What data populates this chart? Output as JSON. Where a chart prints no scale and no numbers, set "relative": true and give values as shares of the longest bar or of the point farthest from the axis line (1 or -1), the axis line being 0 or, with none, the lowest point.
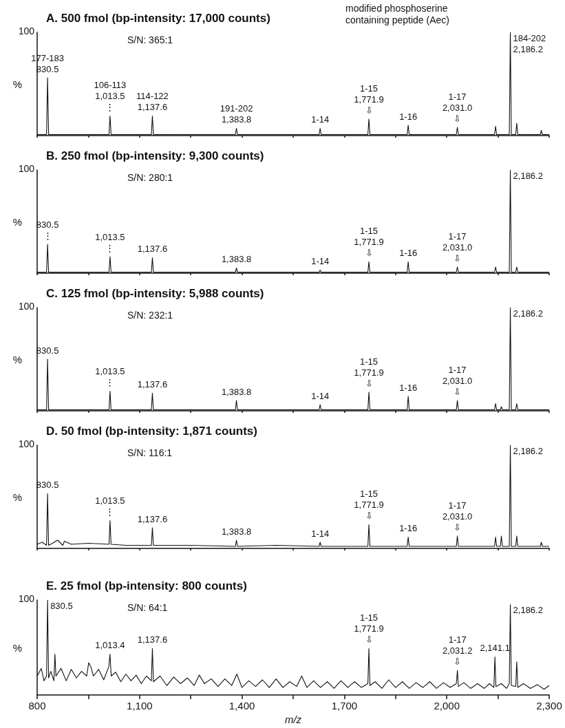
{
  "chart_data": [
    {
      "type": "line",
      "title": "A. 500 fmol (bp-intensity: 17,000 counts)",
      "ylabel": "%",
      "relative": true,
      "marker": "none",
      "tick_labels": false,
      "xlim": [
        800,
        2300
      ],
      "xticks": [
        {
          "value": 800,
          "label": null
        },
        {
          "value": 950,
          "label": null
        },
        {
          "value": 1100,
          "label": null
        },
        {
          "value": 1250,
          "label": null
        },
        {
          "value": 1400,
          "label": null
        },
        {
          "value": 1550,
          "label": null
        },
        {
          "value": 1700,
          "label": null
        },
        {
          "value": 1850,
          "label": null
        },
        {
          "value": 2000,
          "label": null
        },
        {
          "value": 2150,
          "label": null
        },
        {
          "value": 2300,
          "label": null
        }
      ],
      "x": [
        800,
        827.5,
        830.5,
        833.5,
        1010.5,
        1013.5,
        1016.5,
        1134.6,
        1137.6,
        1140.6,
        1380.8,
        1383.8,
        1386.8,
        1626,
        1629,
        1632,
        1768.9,
        1771.9,
        1774.9,
        1884,
        1887,
        1890,
        2028,
        2031,
        2034,
        2140,
        2143,
        2146,
        2183.2,
        2186.2,
        2189.2,
        2202,
        2205,
        2208,
        2274,
        2277,
        2280,
        2300
      ],
      "series": [
        {
          "color": "#111111",
          "values": [
            0.01,
            0.01,
            0.56,
            0.01,
            0.01,
            0.19,
            0.01,
            0.01,
            0.19,
            0.01,
            0.01,
            0.07,
            0.01,
            0.01,
            0.07,
            0.01,
            0.01,
            0.16,
            0.01,
            0.01,
            0.1,
            0.01,
            0.01,
            0.08,
            0.01,
            0.01,
            0.09,
            0.01,
            0.01,
            1,
            0.01,
            0.01,
            0.12,
            0.01,
            0.01,
            0.05,
            0.01,
            0.01
          ]
        }
      ],
      "annotations": [
        "100",
        "S/N: 365:1",
        "modified phosphoserine\ncontaining peptide (Aec)",
        {
          "text": "177-183\n830.5",
          "x": 830.5,
          "y": 0.56
        },
        {
          "text": "106-113\n1,013.5\n⋮",
          "x": 1013.5,
          "y": 0.19
        },
        {
          "text": "114-122\n1,137.6",
          "x": 1137.6,
          "y": 0.19
        },
        {
          "text": "191-202\n1,383.8",
          "x": 1383.8,
          "y": 0.07
        },
        {
          "text": "1-14",
          "x": 1629,
          "y": 0.07
        },
        {
          "text": "1-15\n1,771.9\n⇩",
          "x": 1771.9,
          "y": 0.16
        },
        {
          "text": "1-16",
          "x": 1887,
          "y": 0.1
        },
        {
          "text": "1-17\n2,031.0\n⇩",
          "x": 2031,
          "y": 0.08
        },
        {
          "text": "184-202\n2,186.2",
          "x": 2186.2,
          "y": 1
        }
      ]
    },
    {
      "type": "line",
      "title": "B. 250 fmol (bp-intensity: 9,300 counts)",
      "ylabel": "%",
      "relative": true,
      "marker": "none",
      "tick_labels": false,
      "xlim": [
        800,
        2300
      ],
      "xticks": [
        {
          "value": 800,
          "label": null
        },
        {
          "value": 950,
          "label": null
        },
        {
          "value": 1100,
          "label": null
        },
        {
          "value": 1250,
          "label": null
        },
        {
          "value": 1400,
          "label": null
        },
        {
          "value": 1550,
          "label": null
        },
        {
          "value": 1700,
          "label": null
        },
        {
          "value": 1850,
          "label": null
        },
        {
          "value": 2000,
          "label": null
        },
        {
          "value": 2150,
          "label": null
        },
        {
          "value": 2300,
          "label": null
        }
      ],
      "x": [
        800,
        827.5,
        830.5,
        833.5,
        1010.5,
        1013.5,
        1016.5,
        1134.6,
        1137.6,
        1140.6,
        1380.8,
        1383.8,
        1386.8,
        1626,
        1629,
        1632,
        1768.9,
        1771.9,
        1774.9,
        1884,
        1887,
        1890,
        2028,
        2031,
        2034,
        2140,
        2143,
        2146,
        2183.2,
        2186.2,
        2189.2,
        2202,
        2205,
        2208,
        2300
      ],
      "series": [
        {
          "color": "#111111",
          "values": [
            0.01,
            0.01,
            0.28,
            0.01,
            0.01,
            0.16,
            0.01,
            0.01,
            0.15,
            0.01,
            0.01,
            0.05,
            0.01,
            0.01,
            0.03,
            0.01,
            0.01,
            0.11,
            0.01,
            0.01,
            0.11,
            0.01,
            0.01,
            0.06,
            0.01,
            0.01,
            0.06,
            0.01,
            0.01,
            1,
            0.01,
            0.01,
            0.06,
            0.01,
            0.01
          ]
        }
      ],
      "annotations": [
        "100",
        "S/N: 280:1",
        {
          "text": "830.5\n⋮",
          "x": 830.5,
          "y": 0.28
        },
        {
          "text": "1,013.5\n⋮",
          "x": 1013.5,
          "y": 0.16
        },
        {
          "text": "1,137.6",
          "x": 1137.6,
          "y": 0.15
        },
        {
          "text": "1,383.8",
          "x": 1383.8,
          "y": 0.05
        },
        {
          "text": "1-14",
          "x": 1629,
          "y": 0.03
        },
        {
          "text": "1-15\n1,771.9\n⇩",
          "x": 1771.9,
          "y": 0.11
        },
        {
          "text": "1-16",
          "x": 1887,
          "y": 0.11
        },
        {
          "text": "1-17\n2,031.0\n⇩",
          "x": 2031,
          "y": 0.06
        },
        {
          "text": "2,186.2",
          "x": 2186.2,
          "y": 1
        }
      ]
    },
    {
      "type": "line",
      "title": "C. 125 fmol (bp-intensity: 5,988 counts)",
      "ylabel": "%",
      "relative": true,
      "marker": "none",
      "tick_labels": false,
      "xlim": [
        800,
        2300
      ],
      "xticks": [
        {
          "value": 800,
          "label": null
        },
        {
          "value": 950,
          "label": null
        },
        {
          "value": 1100,
          "label": null
        },
        {
          "value": 1250,
          "label": null
        },
        {
          "value": 1400,
          "label": null
        },
        {
          "value": 1550,
          "label": null
        },
        {
          "value": 1700,
          "label": null
        },
        {
          "value": 1850,
          "label": null
        },
        {
          "value": 2000,
          "label": null
        },
        {
          "value": 2150,
          "label": null
        },
        {
          "value": 2300,
          "label": null
        }
      ],
      "x": [
        800,
        827.5,
        830.5,
        833.5,
        1010.5,
        1013.5,
        1016.5,
        1134.6,
        1137.6,
        1140.6,
        1380.8,
        1383.8,
        1386.8,
        1626,
        1629,
        1632,
        1768.9,
        1771.9,
        1774.9,
        1884,
        1887,
        1890,
        2028,
        2031,
        2034,
        2140,
        2143,
        2146,
        2157,
        2160,
        2163,
        2183.2,
        2186.2,
        2189.2,
        2202,
        2205,
        2208,
        2300
      ],
      "series": [
        {
          "color": "#111111",
          "values": [
            0.01,
            0.01,
            0.5,
            0.01,
            0.01,
            0.19,
            0.01,
            0.01,
            0.17,
            0.01,
            0.01,
            0.1,
            0.01,
            0.01,
            0.06,
            0.01,
            0.01,
            0.18,
            0.01,
            0.01,
            0.14,
            0.01,
            0.01,
            0.1,
            0.01,
            0.01,
            0.07,
            0.01,
            0.01,
            0.04,
            0.01,
            0.01,
            1,
            0.01,
            0.01,
            0.07,
            0.01,
            0.01
          ]
        }
      ],
      "annotations": [
        "100",
        "S/N: 232:1",
        {
          "text": "830.5",
          "x": 830.5,
          "y": 0.5
        },
        {
          "text": "1,013.5\n⋮",
          "x": 1013.5,
          "y": 0.19
        },
        {
          "text": "1,137.6",
          "x": 1137.6,
          "y": 0.17
        },
        {
          "text": "1,383.8",
          "x": 1383.8,
          "y": 0.1
        },
        {
          "text": "1-14",
          "x": 1629,
          "y": 0.06
        },
        {
          "text": "1-15\n1,771.9\n⇩",
          "x": 1771.9,
          "y": 0.18
        },
        {
          "text": "1-16",
          "x": 1887,
          "y": 0.14
        },
        {
          "text": "1-17\n2,031.0\n⇩",
          "x": 2031,
          "y": 0.1
        },
        {
          "text": "2,186.2",
          "x": 2186.2,
          "y": 1
        }
      ]
    },
    {
      "type": "line",
      "title": "D. 50 fmol (bp-intensity: 1,871 counts)",
      "ylabel": "%",
      "relative": true,
      "marker": "none",
      "tick_labels": false,
      "xlim": [
        800,
        2300
      ],
      "xticks": [
        {
          "value": 800,
          "label": null
        },
        {
          "value": 950,
          "label": null
        },
        {
          "value": 1100,
          "label": null
        },
        {
          "value": 1250,
          "label": null
        },
        {
          "value": 1400,
          "label": null
        },
        {
          "value": 1550,
          "label": null
        },
        {
          "value": 1700,
          "label": null
        },
        {
          "value": 1850,
          "label": null
        },
        {
          "value": 2000,
          "label": null
        },
        {
          "value": 2150,
          "label": null
        },
        {
          "value": 2300,
          "label": null
        }
      ],
      "x": [
        800,
        815,
        827.5,
        830.5,
        833.5,
        845,
        860,
        875,
        880,
        900,
        950,
        1010.5,
        1013.5,
        1016.5,
        1060,
        1134.6,
        1137.6,
        1140.6,
        1250,
        1380.8,
        1383.8,
        1386.8,
        1500,
        1626,
        1629,
        1632,
        1768.9,
        1771.9,
        1774.9,
        1884,
        1887,
        1890,
        2028,
        2031,
        2034,
        2140,
        2143,
        2146,
        2157,
        2160,
        2163,
        2183.2,
        2186.2,
        2189.2,
        2202,
        2205,
        2208,
        2274,
        2277,
        2280,
        2300
      ],
      "series": [
        {
          "color": "#111111",
          "values": [
            0.04,
            0.06,
            0.03,
            0.53,
            0.03,
            0.05,
            0.08,
            0.03,
            0.07,
            0.04,
            0.05,
            0.04,
            0.27,
            0.04,
            0.03,
            0.03,
            0.2,
            0.03,
            0.03,
            0.02,
            0.08,
            0.02,
            0.03,
            0.02,
            0.06,
            0.02,
            0.02,
            0.23,
            0.02,
            0.02,
            0.11,
            0.02,
            0.02,
            0.12,
            0.02,
            0.02,
            0.11,
            0.02,
            0.02,
            0.12,
            0.02,
            0.02,
            1,
            0.02,
            0.02,
            0.12,
            0.02,
            0.02,
            0.06,
            0.02,
            0.02
          ]
        }
      ],
      "annotations": [
        "100",
        "S/N: 116:1",
        {
          "text": "830.5",
          "x": 830.5,
          "y": 0.53
        },
        {
          "text": "1,013.5\n⋮",
          "x": 1013.5,
          "y": 0.27
        },
        {
          "text": "1,137.6",
          "x": 1137.6,
          "y": 0.2
        },
        {
          "text": "1,383.8",
          "x": 1383.8,
          "y": 0.08
        },
        {
          "text": "1-14",
          "x": 1629,
          "y": 0.06
        },
        {
          "text": "1-15\n1,771.9\n⇩",
          "x": 1771.9,
          "y": 0.23
        },
        {
          "text": "1-16",
          "x": 1887,
          "y": 0.11
        },
        {
          "text": "1-17\n2,031.0\n⇩",
          "x": 2031,
          "y": 0.12
        },
        {
          "text": "2,186.2",
          "x": 2186.2,
          "y": 1
        }
      ]
    },
    {
      "type": "line",
      "title": "E. 25 fmol (bp-intensity: 800 counts)",
      "ylabel": "%",
      "xlabel": "m/z",
      "relative": true,
      "marker": "none",
      "tick_labels": "x",
      "xlim": [
        800,
        2300
      ],
      "xticks": [
        800,
        {
          "value": 950,
          "label": null
        },
        {
          "value": 1100,
          "label": "1,100"
        },
        {
          "value": 1250,
          "label": null
        },
        {
          "value": 1400,
          "label": "1,400"
        },
        {
          "value": 1550,
          "label": null
        },
        {
          "value": 1700,
          "label": "1,700"
        },
        {
          "value": 1850,
          "label": null
        },
        {
          "value": 2000,
          "label": "2,000"
        },
        {
          "value": 2150,
          "label": null
        },
        {
          "value": 2300,
          "label": "2,300"
        }
      ],
      "x": [
        800,
        812,
        820,
        827.5,
        830.5,
        833.5,
        840,
        849,
        852,
        855,
        870,
        885,
        900,
        915,
        930,
        945,
        951,
        957,
        965,
        980,
        995,
        1010,
        1013.4,
        1017,
        1030,
        1045,
        1060,
        1075,
        1090,
        1105,
        1120,
        1134.6,
        1137.6,
        1140.6,
        1160,
        1180,
        1200,
        1220,
        1240,
        1260,
        1275,
        1290,
        1310,
        1330,
        1350,
        1370,
        1385,
        1400,
        1420,
        1440,
        1460,
        1480,
        1500,
        1520,
        1540,
        1560,
        1575,
        1590,
        1610,
        1630,
        1650,
        1670,
        1690,
        1710,
        1730,
        1750,
        1768.9,
        1771.9,
        1774.9,
        1790,
        1810,
        1830,
        1850,
        1870,
        1890,
        1910,
        1930,
        1950,
        1970,
        1990,
        2010,
        2028,
        2031.2,
        2034,
        2050,
        2070,
        2090,
        2110,
        2125,
        2138,
        2141.1,
        2144,
        2160,
        2175,
        2183.2,
        2186.2,
        2189.2,
        2202,
        2205,
        2208,
        2225,
        2245,
        2265,
        2285,
        2300
      ],
      "series": [
        {
          "color": "#111111",
          "values": [
            0.2,
            0.28,
            0.15,
            0.2,
            1,
            0.18,
            0.25,
            0.15,
            0.43,
            0.2,
            0.28,
            0.15,
            0.27,
            0.18,
            0.25,
            0.2,
            0.34,
            0.3,
            0.2,
            0.27,
            0.16,
            0.3,
            0.43,
            0.2,
            0.24,
            0.14,
            0.22,
            0.15,
            0.21,
            0.12,
            0.2,
            0.15,
            0.49,
            0.14,
            0.2,
            0.1,
            0.19,
            0.12,
            0.18,
            0.1,
            0.21,
            0.12,
            0.17,
            0.09,
            0.17,
            0.1,
            0.22,
            0.08,
            0.15,
            0.09,
            0.16,
            0.08,
            0.17,
            0.08,
            0.14,
            0.09,
            0.2,
            0.08,
            0.15,
            0.08,
            0.14,
            0.07,
            0.15,
            0.08,
            0.14,
            0.08,
            0.12,
            0.49,
            0.1,
            0.14,
            0.07,
            0.16,
            0.08,
            0.14,
            0.07,
            0.13,
            0.08,
            0.14,
            0.07,
            0.13,
            0.08,
            0.12,
            0.26,
            0.09,
            0.13,
            0.07,
            0.12,
            0.07,
            0.12,
            0.08,
            0.4,
            0.09,
            0.12,
            0.07,
            0.12,
            0.95,
            0.1,
            0.09,
            0.35,
            0.08,
            0.12,
            0.07,
            0.11,
            0.06,
            0.1
          ]
        }
      ],
      "annotations": [
        "100",
        "S/N: 64:1",
        {
          "text": "830.5",
          "x": 830.5,
          "y": 1
        },
        {
          "text": "1,013.4",
          "x": 1013.4,
          "y": 0.43
        },
        {
          "text": "1,137.6",
          "x": 1137.6,
          "y": 0.49
        },
        {
          "text": "1-15\n1,771.9\n⇩",
          "x": 1771.9,
          "y": 0.49
        },
        {
          "text": "1-17\n2,031.2\n⇩",
          "x": 2031.2,
          "y": 0.26
        },
        {
          "text": "2,141.1",
          "x": 2141.1,
          "y": 0.4
        },
        {
          "text": "2,186.2",
          "x": 2186.2,
          "y": 0.95
        }
      ]
    }
  ]
}
